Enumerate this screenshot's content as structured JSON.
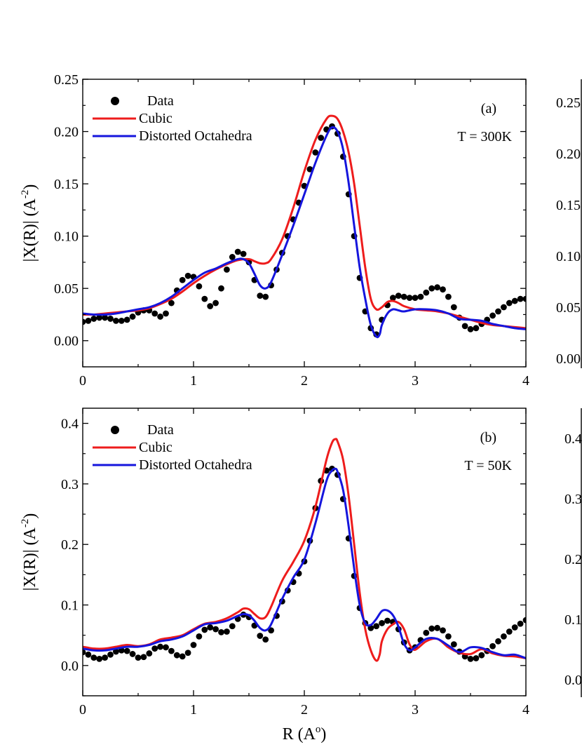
{
  "colors": {
    "data": "#000000",
    "cubic": "#ee1c1c",
    "distorted": "#1515dd"
  },
  "right_partial": {
    "top_ticks": [
      "0.25",
      "0.20",
      "0.15",
      "0.10",
      "0.05",
      "0.00"
    ],
    "bottom_ticks": [
      "0.4",
      "0.3",
      "0.2",
      "0.1",
      "0.0"
    ]
  },
  "chart_data": [
    {
      "type": "line",
      "panel_label": "(a)",
      "annotation": "T = 300K",
      "xlabel": "",
      "ylabel": "|X(R)| (A-2)",
      "ylabel_main": "|X(R)| (A",
      "ylabel_sup": "-2",
      "ylabel_close": ")",
      "xlim": [
        0,
        4
      ],
      "ylim": [
        -0.025,
        0.25
      ],
      "xticks": [
        0,
        1,
        2,
        3,
        4
      ],
      "xtick_labels": [
        "0",
        "1",
        "2",
        "3",
        "4"
      ],
      "yticks": [
        0.0,
        0.05,
        0.1,
        0.15,
        0.2,
        0.25
      ],
      "ytick_labels": [
        "0.00",
        "0.05",
        "0.10",
        "0.15",
        "0.20",
        "0.25"
      ],
      "legend": {
        "placement": "top-left",
        "entries": [
          "Data",
          "Cubic",
          "Distorted Octahedra"
        ]
      },
      "series": [
        {
          "name": "Data",
          "style": "scatter",
          "x": [
            0.0,
            0.05,
            0.1,
            0.15,
            0.2,
            0.25,
            0.3,
            0.35,
            0.4,
            0.45,
            0.5,
            0.55,
            0.6,
            0.65,
            0.7,
            0.75,
            0.8,
            0.85,
            0.9,
            0.95,
            1.0,
            1.05,
            1.1,
            1.15,
            1.2,
            1.25,
            1.3,
            1.35,
            1.4,
            1.45,
            1.5,
            1.55,
            1.6,
            1.65,
            1.7,
            1.75,
            1.8,
            1.85,
            1.9,
            1.95,
            2.0,
            2.05,
            2.1,
            2.15,
            2.2,
            2.25,
            2.3,
            2.35,
            2.4,
            2.45,
            2.5,
            2.55,
            2.6,
            2.65,
            2.7,
            2.75,
            2.8,
            2.85,
            2.9,
            2.95,
            3.0,
            3.05,
            3.1,
            3.15,
            3.2,
            3.25,
            3.3,
            3.35,
            3.4,
            3.45,
            3.5,
            3.55,
            3.6,
            3.65,
            3.7,
            3.75,
            3.8,
            3.85,
            3.9,
            3.95,
            4.0
          ],
          "y": [
            0.018,
            0.019,
            0.021,
            0.022,
            0.022,
            0.021,
            0.019,
            0.019,
            0.02,
            0.023,
            0.027,
            0.029,
            0.029,
            0.026,
            0.023,
            0.026,
            0.036,
            0.048,
            0.058,
            0.062,
            0.061,
            0.052,
            0.04,
            0.033,
            0.036,
            0.05,
            0.068,
            0.08,
            0.085,
            0.083,
            0.075,
            0.058,
            0.043,
            0.042,
            0.053,
            0.068,
            0.084,
            0.1,
            0.116,
            0.132,
            0.148,
            0.164,
            0.18,
            0.194,
            0.202,
            0.205,
            0.198,
            0.176,
            0.14,
            0.1,
            0.06,
            0.028,
            0.012,
            0.006,
            0.02,
            0.034,
            0.041,
            0.043,
            0.042,
            0.041,
            0.041,
            0.042,
            0.046,
            0.05,
            0.051,
            0.049,
            0.042,
            0.032,
            0.022,
            0.014,
            0.011,
            0.012,
            0.016,
            0.02,
            0.024,
            0.028,
            0.032,
            0.036,
            0.038,
            0.04,
            0.04
          ]
        },
        {
          "name": "Cubic",
          "style": "line",
          "x": [
            0.0,
            0.1,
            0.2,
            0.3,
            0.4,
            0.5,
            0.6,
            0.7,
            0.8,
            0.9,
            1.0,
            1.1,
            1.2,
            1.3,
            1.4,
            1.5,
            1.55,
            1.6,
            1.65,
            1.7,
            1.8,
            1.9,
            2.0,
            2.1,
            2.2,
            2.25,
            2.3,
            2.35,
            2.4,
            2.45,
            2.5,
            2.55,
            2.6,
            2.65,
            2.7,
            2.75,
            2.8,
            2.85,
            2.9,
            3.0,
            3.1,
            3.2,
            3.3,
            3.4,
            3.5,
            3.6,
            3.7,
            3.8,
            3.9,
            4.0
          ],
          "y": [
            0.025,
            0.025,
            0.026,
            0.027,
            0.028,
            0.029,
            0.031,
            0.035,
            0.04,
            0.047,
            0.055,
            0.062,
            0.068,
            0.073,
            0.077,
            0.078,
            0.076,
            0.074,
            0.074,
            0.078,
            0.097,
            0.127,
            0.162,
            0.192,
            0.212,
            0.215,
            0.212,
            0.2,
            0.18,
            0.15,
            0.11,
            0.07,
            0.04,
            0.03,
            0.032,
            0.037,
            0.038,
            0.036,
            0.033,
            0.03,
            0.029,
            0.028,
            0.026,
            0.023,
            0.02,
            0.017,
            0.015,
            0.014,
            0.013,
            0.012
          ]
        },
        {
          "name": "Distorted Octahedra",
          "style": "line",
          "x": [
            0.0,
            0.1,
            0.2,
            0.3,
            0.4,
            0.5,
            0.6,
            0.7,
            0.8,
            0.9,
            1.0,
            1.1,
            1.2,
            1.3,
            1.4,
            1.45,
            1.5,
            1.55,
            1.6,
            1.65,
            1.7,
            1.8,
            1.9,
            2.0,
            2.1,
            2.2,
            2.25,
            2.3,
            2.35,
            2.4,
            2.45,
            2.5,
            2.55,
            2.6,
            2.65,
            2.68,
            2.7,
            2.75,
            2.8,
            2.85,
            2.9,
            3.0,
            3.1,
            3.2,
            3.3,
            3.4,
            3.5,
            3.6,
            3.7,
            3.8,
            3.9,
            4.0
          ],
          "y": [
            0.026,
            0.025,
            0.025,
            0.026,
            0.028,
            0.03,
            0.032,
            0.036,
            0.042,
            0.05,
            0.058,
            0.065,
            0.069,
            0.074,
            0.078,
            0.078,
            0.074,
            0.064,
            0.053,
            0.05,
            0.056,
            0.082,
            0.11,
            0.14,
            0.17,
            0.196,
            0.204,
            0.2,
            0.183,
            0.151,
            0.11,
            0.07,
            0.04,
            0.015,
            0.004,
            0.006,
            0.015,
            0.026,
            0.03,
            0.029,
            0.028,
            0.03,
            0.03,
            0.029,
            0.026,
            0.021,
            0.02,
            0.019,
            0.016,
            0.014,
            0.012,
            0.011
          ]
        }
      ]
    },
    {
      "type": "line",
      "panel_label": "(b)",
      "annotation": "T = 50K",
      "xlabel": "R (Ao)",
      "xlabel_main": "R (A",
      "xlabel_sup": "o",
      "xlabel_close": ")",
      "ylabel": "|X(R)| (A-2)",
      "ylabel_main": "|X(R)| (A",
      "ylabel_sup": "-2",
      "ylabel_close": ")",
      "xlim": [
        0,
        4
      ],
      "ylim": [
        -0.05,
        0.425
      ],
      "xticks": [
        0,
        1,
        2,
        3,
        4
      ],
      "xtick_labels": [
        "0",
        "1",
        "2",
        "3",
        "4"
      ],
      "yticks": [
        0.0,
        0.1,
        0.2,
        0.3,
        0.4
      ],
      "ytick_labels": [
        "0.0",
        "0.1",
        "0.2",
        "0.3",
        "0.4"
      ],
      "legend": {
        "placement": "top-left",
        "entries": [
          "Data",
          "Cubic",
          "Distorted Octahedra"
        ]
      },
      "series": [
        {
          "name": "Data",
          "style": "scatter",
          "x": [
            0.0,
            0.05,
            0.1,
            0.15,
            0.2,
            0.25,
            0.3,
            0.35,
            0.4,
            0.45,
            0.5,
            0.55,
            0.6,
            0.65,
            0.7,
            0.75,
            0.8,
            0.85,
            0.9,
            0.95,
            1.0,
            1.05,
            1.1,
            1.15,
            1.2,
            1.25,
            1.3,
            1.35,
            1.4,
            1.45,
            1.5,
            1.55,
            1.6,
            1.65,
            1.7,
            1.75,
            1.8,
            1.85,
            1.9,
            1.95,
            2.0,
            2.05,
            2.1,
            2.15,
            2.2,
            2.25,
            2.3,
            2.35,
            2.4,
            2.45,
            2.5,
            2.55,
            2.6,
            2.65,
            2.7,
            2.75,
            2.8,
            2.85,
            2.9,
            2.95,
            3.0,
            3.05,
            3.1,
            3.15,
            3.2,
            3.25,
            3.3,
            3.35,
            3.4,
            3.45,
            3.5,
            3.55,
            3.6,
            3.65,
            3.7,
            3.75,
            3.8,
            3.85,
            3.9,
            3.95,
            4.0
          ],
          "y": [
            0.022,
            0.018,
            0.013,
            0.011,
            0.013,
            0.018,
            0.023,
            0.025,
            0.024,
            0.019,
            0.013,
            0.014,
            0.02,
            0.028,
            0.031,
            0.03,
            0.024,
            0.017,
            0.015,
            0.021,
            0.034,
            0.048,
            0.059,
            0.063,
            0.06,
            0.055,
            0.056,
            0.065,
            0.077,
            0.084,
            0.08,
            0.066,
            0.049,
            0.043,
            0.058,
            0.082,
            0.106,
            0.124,
            0.138,
            0.152,
            0.172,
            0.206,
            0.26,
            0.305,
            0.322,
            0.325,
            0.315,
            0.275,
            0.21,
            0.148,
            0.095,
            0.07,
            0.062,
            0.065,
            0.07,
            0.074,
            0.072,
            0.06,
            0.038,
            0.025,
            0.03,
            0.042,
            0.054,
            0.061,
            0.062,
            0.058,
            0.048,
            0.035,
            0.023,
            0.015,
            0.011,
            0.012,
            0.017,
            0.024,
            0.032,
            0.04,
            0.048,
            0.056,
            0.063,
            0.069,
            0.075
          ]
        },
        {
          "name": "Cubic",
          "style": "line",
          "x": [
            0.0,
            0.1,
            0.2,
            0.3,
            0.4,
            0.5,
            0.6,
            0.7,
            0.8,
            0.9,
            1.0,
            1.1,
            1.2,
            1.3,
            1.4,
            1.45,
            1.5,
            1.55,
            1.6,
            1.65,
            1.7,
            1.8,
            1.9,
            2.0,
            2.1,
            2.2,
            2.25,
            2.28,
            2.3,
            2.35,
            2.4,
            2.45,
            2.5,
            2.55,
            2.6,
            2.65,
            2.68,
            2.7,
            2.75,
            2.8,
            2.85,
            2.9,
            2.95,
            3.0,
            3.1,
            3.2,
            3.3,
            3.4,
            3.5,
            3.6,
            3.7,
            3.8,
            3.9,
            4.0
          ],
          "y": [
            0.031,
            0.028,
            0.028,
            0.031,
            0.034,
            0.032,
            0.035,
            0.043,
            0.046,
            0.05,
            0.06,
            0.069,
            0.072,
            0.078,
            0.088,
            0.094,
            0.093,
            0.085,
            0.078,
            0.08,
            0.097,
            0.14,
            0.171,
            0.206,
            0.262,
            0.34,
            0.368,
            0.374,
            0.37,
            0.34,
            0.28,
            0.2,
            0.12,
            0.06,
            0.025,
            0.008,
            0.018,
            0.04,
            0.06,
            0.068,
            0.072,
            0.06,
            0.035,
            0.026,
            0.04,
            0.044,
            0.03,
            0.021,
            0.019,
            0.027,
            0.02,
            0.016,
            0.015,
            0.012
          ]
        },
        {
          "name": "Distorted Octahedra",
          "style": "line",
          "x": [
            0.0,
            0.1,
            0.2,
            0.3,
            0.4,
            0.5,
            0.6,
            0.7,
            0.8,
            0.9,
            1.0,
            1.1,
            1.2,
            1.3,
            1.4,
            1.45,
            1.5,
            1.55,
            1.6,
            1.65,
            1.7,
            1.8,
            1.9,
            2.0,
            2.1,
            2.2,
            2.25,
            2.28,
            2.3,
            2.35,
            2.4,
            2.45,
            2.5,
            2.55,
            2.6,
            2.65,
            2.7,
            2.75,
            2.8,
            2.85,
            2.9,
            2.95,
            3.0,
            3.1,
            3.2,
            3.3,
            3.4,
            3.5,
            3.6,
            3.7,
            3.8,
            3.9,
            4.0
          ],
          "y": [
            0.028,
            0.025,
            0.025,
            0.028,
            0.031,
            0.031,
            0.034,
            0.04,
            0.043,
            0.048,
            0.058,
            0.068,
            0.07,
            0.074,
            0.082,
            0.085,
            0.083,
            0.074,
            0.062,
            0.058,
            0.068,
            0.11,
            0.145,
            0.175,
            0.235,
            0.305,
            0.322,
            0.325,
            0.32,
            0.29,
            0.23,
            0.16,
            0.1,
            0.07,
            0.067,
            0.077,
            0.09,
            0.091,
            0.083,
            0.064,
            0.036,
            0.025,
            0.03,
            0.044,
            0.044,
            0.033,
            0.022,
            0.03,
            0.029,
            0.022,
            0.017,
            0.018,
            0.012
          ]
        }
      ]
    }
  ]
}
